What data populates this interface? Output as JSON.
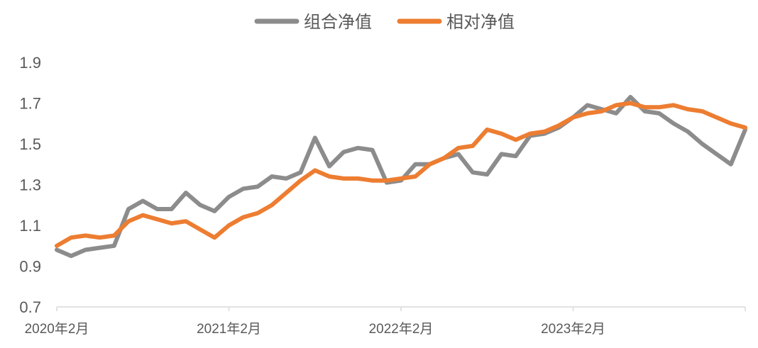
{
  "chart_data": {
    "type": "line",
    "legend_position": "top-center",
    "grid": false,
    "ylim": [
      0.7,
      1.9
    ],
    "yticks": [
      "0.7",
      "0.9",
      "1.1",
      "1.3",
      "1.5",
      "1.7",
      "1.9"
    ],
    "x_ticks": [
      "2020年2月",
      "2021年2月",
      "2022年2月",
      "2023年2月"
    ],
    "x_range": [
      "2020-02",
      "2024-02"
    ],
    "series": [
      {
        "name": "组合净值",
        "color": "#8c8c8c",
        "x": [
          "2020-02",
          "2020-03",
          "2020-04",
          "2020-05",
          "2020-06",
          "2020-07",
          "2020-08",
          "2020-09",
          "2020-10",
          "2020-11",
          "2020-12",
          "2021-01",
          "2021-02",
          "2021-03",
          "2021-04",
          "2021-05",
          "2021-06",
          "2021-07",
          "2021-08",
          "2021-09",
          "2021-10",
          "2021-11",
          "2021-12",
          "2022-01",
          "2022-02",
          "2022-03",
          "2022-04",
          "2022-05",
          "2022-06",
          "2022-07",
          "2022-08",
          "2022-09",
          "2022-10",
          "2022-11",
          "2022-12",
          "2023-01",
          "2023-02",
          "2023-03",
          "2023-04",
          "2023-05",
          "2023-06",
          "2023-07",
          "2023-08",
          "2023-09",
          "2023-10",
          "2023-11",
          "2023-12",
          "2024-01",
          "2024-02"
        ],
        "values": [
          0.98,
          0.95,
          0.98,
          0.99,
          1.0,
          1.18,
          1.22,
          1.18,
          1.18,
          1.26,
          1.2,
          1.17,
          1.24,
          1.28,
          1.29,
          1.34,
          1.33,
          1.36,
          1.53,
          1.39,
          1.46,
          1.48,
          1.47,
          1.31,
          1.32,
          1.4,
          1.4,
          1.43,
          1.45,
          1.36,
          1.35,
          1.45,
          1.44,
          1.54,
          1.55,
          1.58,
          1.63,
          1.69,
          1.67,
          1.65,
          1.73,
          1.66,
          1.65,
          1.6,
          1.56,
          1.5,
          1.45,
          1.4,
          1.57
        ]
      },
      {
        "name": "相对净值",
        "color": "#ed7d31",
        "x": [
          "2020-02",
          "2020-03",
          "2020-04",
          "2020-05",
          "2020-06",
          "2020-07",
          "2020-08",
          "2020-09",
          "2020-10",
          "2020-11",
          "2020-12",
          "2021-01",
          "2021-02",
          "2021-03",
          "2021-04",
          "2021-05",
          "2021-06",
          "2021-07",
          "2021-08",
          "2021-09",
          "2021-10",
          "2021-11",
          "2021-12",
          "2022-01",
          "2022-02",
          "2022-03",
          "2022-04",
          "2022-05",
          "2022-06",
          "2022-07",
          "2022-08",
          "2022-09",
          "2022-10",
          "2022-11",
          "2022-12",
          "2023-01",
          "2023-02",
          "2023-03",
          "2023-04",
          "2023-05",
          "2023-06",
          "2023-07",
          "2023-08",
          "2023-09",
          "2023-10",
          "2023-11",
          "2023-12",
          "2024-01",
          "2024-02"
        ],
        "values": [
          1.0,
          1.04,
          1.05,
          1.04,
          1.05,
          1.12,
          1.15,
          1.13,
          1.11,
          1.12,
          1.08,
          1.04,
          1.1,
          1.14,
          1.16,
          1.2,
          1.26,
          1.32,
          1.37,
          1.34,
          1.33,
          1.33,
          1.32,
          1.32,
          1.33,
          1.34,
          1.4,
          1.43,
          1.48,
          1.49,
          1.57,
          1.55,
          1.52,
          1.55,
          1.56,
          1.59,
          1.63,
          1.65,
          1.66,
          1.69,
          1.7,
          1.68,
          1.68,
          1.69,
          1.67,
          1.66,
          1.63,
          1.6,
          1.58
        ]
      }
    ]
  }
}
